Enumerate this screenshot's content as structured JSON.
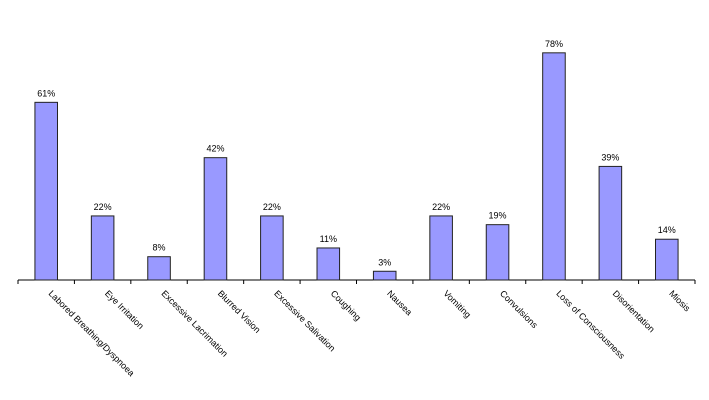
{
  "chart_data": {
    "type": "bar",
    "categories": [
      "Labored Breathing/Dyspnoea",
      "Eye Irritation",
      "Excessive Lacrimation",
      "Blurred Vision",
      "Excessive Salivation",
      "Coughing",
      "Nausea",
      "Vomiting",
      "Convulsions",
      "Loss of Consciousness",
      "Disorientation",
      "Miosis"
    ],
    "values": [
      61,
      22,
      8,
      42,
      22,
      11,
      3,
      22,
      19,
      78,
      39,
      14
    ],
    "value_labels": [
      "61%",
      "22%",
      "8%",
      "42%",
      "22%",
      "11%",
      "3%",
      "22%",
      "19%",
      "78%",
      "39%",
      "14%"
    ],
    "color": "#9999ff",
    "ylim": [
      0,
      80
    ]
  }
}
